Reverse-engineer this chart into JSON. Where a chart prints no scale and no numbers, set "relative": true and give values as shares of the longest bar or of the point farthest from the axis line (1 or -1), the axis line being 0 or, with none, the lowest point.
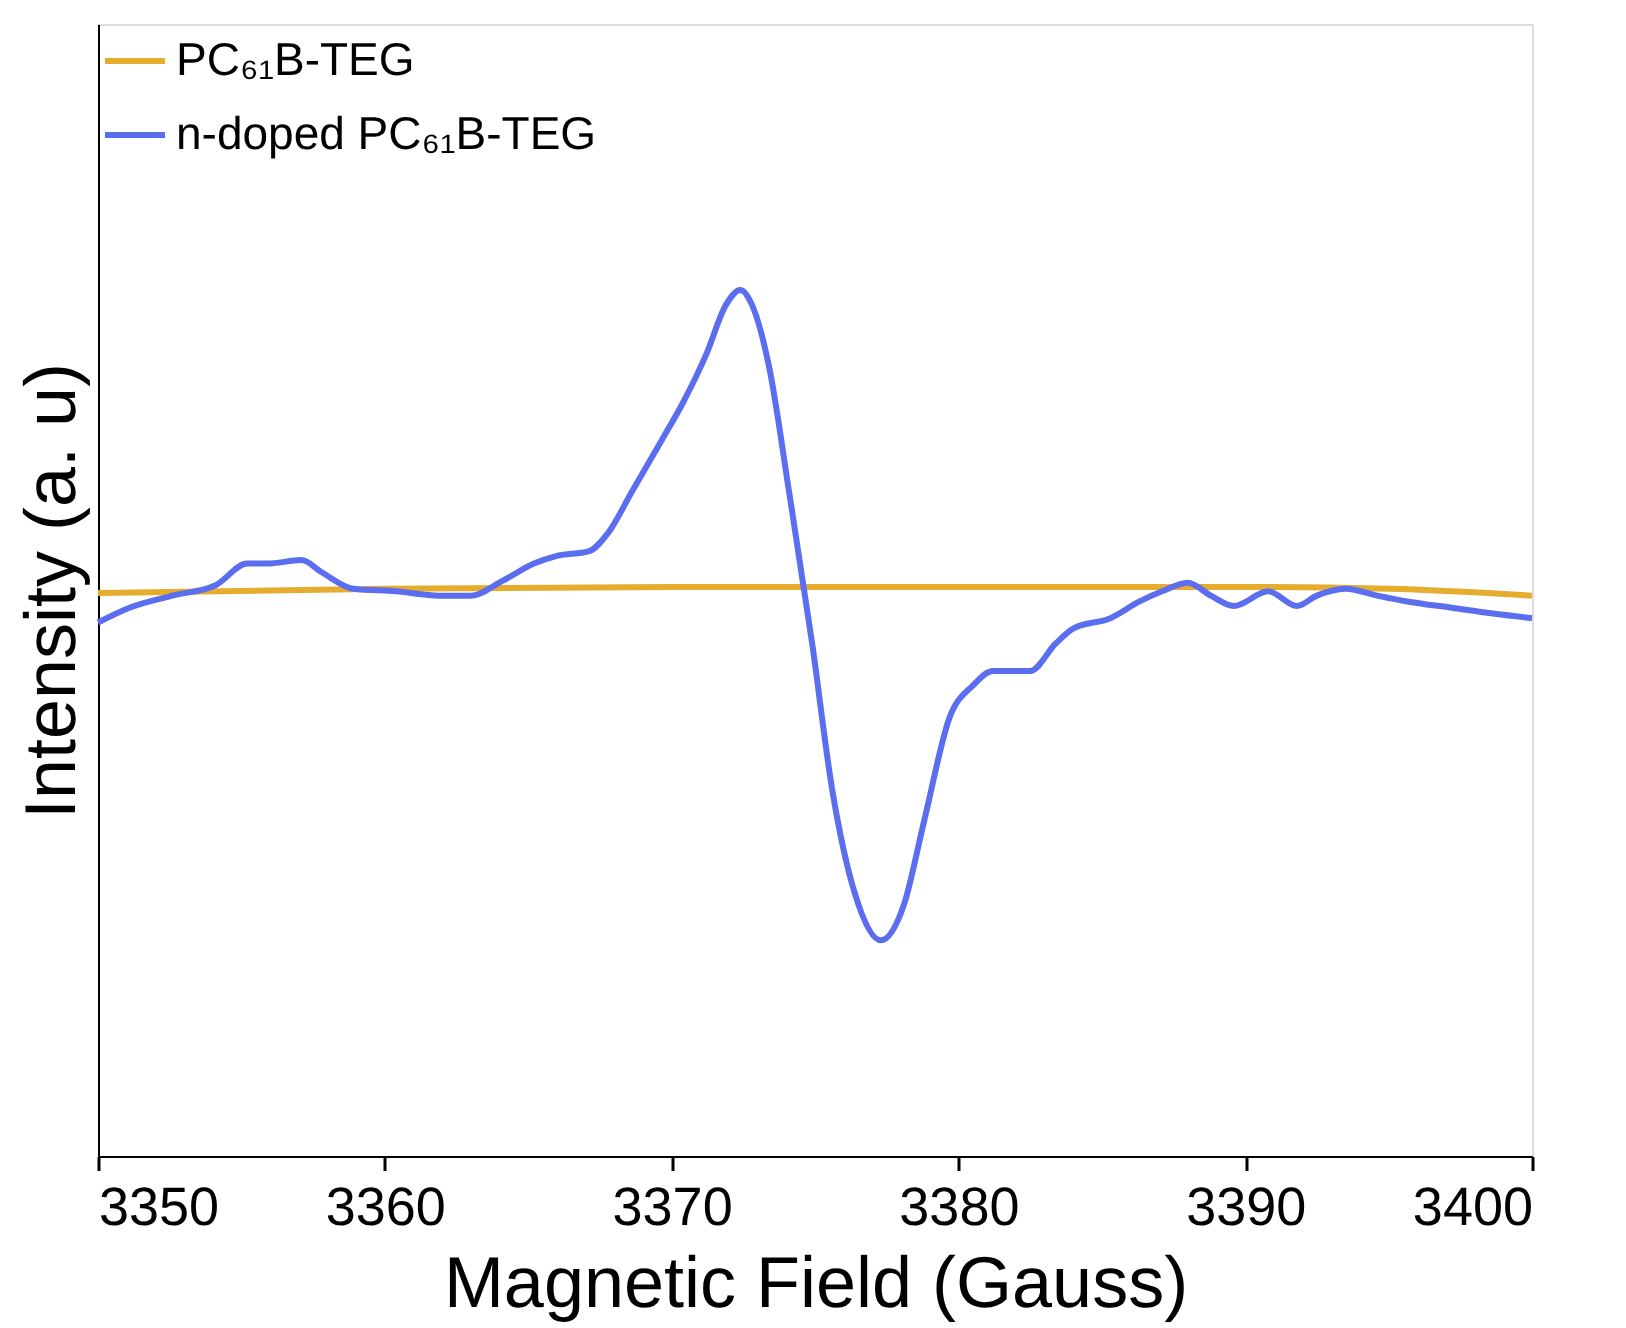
{
  "chart_data": {
    "type": "line",
    "relative": true,
    "xlabel": "Magnetic Field (Gauss)",
    "ylabel": "Intensity (a. u)",
    "xlim": [
      3350,
      3400
    ],
    "xticks": [
      3350,
      3360,
      3370,
      3380,
      3390,
      3400
    ],
    "legend": "top left",
    "grid": false,
    "marker": "none",
    "line_style": "solid",
    "series": [
      {
        "name": "PC₆₁B-TEG",
        "color": "#e6ac2e",
        "x": [
          3350,
          3360,
          3370,
          3380,
          3390,
          3395,
          3400
        ],
        "values": [
          0.65,
          0.655,
          0.657,
          0.657,
          0.657,
          0.655,
          0.647
        ]
      },
      {
        "name": "n-doped PC₆₁B-TEG",
        "color": "#5b6ef0",
        "x": [
          3350,
          3351.1,
          3352.6,
          3354.1,
          3355.2,
          3355.9,
          3357.1,
          3357.8,
          3358.9,
          3360.4,
          3361.9,
          3363.0,
          3364.1,
          3365.2,
          3366.0,
          3367.1,
          3367.8,
          3368.6,
          3369.7,
          3370.4,
          3371.2,
          3371.9,
          3372.4,
          3372.8,
          3373.4,
          3374.1,
          3374.9,
          3375.6,
          3376.4,
          3377.3,
          3378.1,
          3378.8,
          3379.7,
          3380.5,
          3381.2,
          3382.5,
          3383.4,
          3384.0,
          3385.3,
          3386.3,
          3387.1,
          3388.0,
          3388.8,
          3389.6,
          3390.8,
          3391.8,
          3392.5,
          3393.5,
          3394.6,
          3395.7,
          3397.2,
          3398.7,
          3400
        ],
        "values": [
          0.616,
          0.633,
          0.647,
          0.659,
          0.684,
          0.684,
          0.688,
          0.674,
          0.655,
          0.652,
          0.647,
          0.647,
          0.664,
          0.684,
          0.693,
          0.698,
          0.72,
          0.766,
          0.829,
          0.87,
          0.925,
          0.983,
          1.0,
          0.983,
          0.911,
          0.766,
          0.592,
          0.423,
          0.302,
          0.249,
          0.29,
          0.386,
          0.507,
          0.543,
          0.56,
          0.56,
          0.592,
          0.609,
          0.621,
          0.64,
          0.652,
          0.662,
          0.647,
          0.635,
          0.652,
          0.635,
          0.647,
          0.655,
          0.647,
          0.64,
          0.633,
          0.626,
          0.621
        ]
      }
    ]
  }
}
